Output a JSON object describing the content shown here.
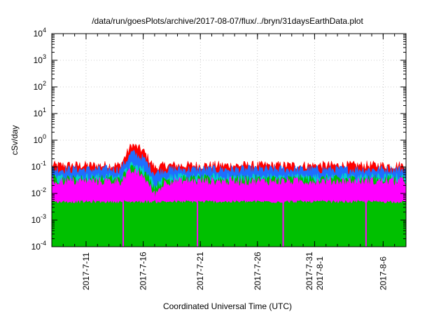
{
  "chart_data": {
    "type": "area",
    "title": "/data/run/goesPlots/archive/2017-08-07/flux/../bryn/31daysEarthData.plot",
    "xlabel": "Coordinated Universal Time (UTC)",
    "ylabel": "cSv/day",
    "yscale": "log",
    "ylim": [
      0.0001,
      10000
    ],
    "xlim": [
      "2017-07-08",
      "2017-08-08"
    ],
    "grid": true,
    "x_ticks": [
      {
        "date": "2017-07-11",
        "lines": [
          "2017-7-11"
        ]
      },
      {
        "date": "2017-07-16",
        "lines": [
          "2017-7-16"
        ]
      },
      {
        "date": "2017-07-21",
        "lines": [
          "2017-7-21"
        ]
      },
      {
        "date": "2017-07-26",
        "lines": [
          "2017-7-26"
        ]
      },
      {
        "date": "2017-07-31",
        "lines": [
          "2017-7-31",
          "2017-8-1"
        ]
      },
      {
        "date": "2017-08-06",
        "lines": [
          "2017-8-6"
        ]
      }
    ],
    "y_ticks": [
      {
        "value": 0.0001,
        "base": "10",
        "exp": "-4"
      },
      {
        "value": 0.001,
        "base": "10",
        "exp": "-3"
      },
      {
        "value": 0.01,
        "base": "10",
        "exp": "-2"
      },
      {
        "value": 0.1,
        "base": "10",
        "exp": "-1"
      },
      {
        "value": 1,
        "base": "10",
        "exp": "0"
      },
      {
        "value": 10,
        "base": "10",
        "exp": "1"
      },
      {
        "value": 100,
        "base": "10",
        "exp": "2"
      },
      {
        "value": 1000,
        "base": "10",
        "exp": "3"
      },
      {
        "value": 10000,
        "base": "10",
        "exp": "4"
      }
    ],
    "series_colors": [
      "#ff0000",
      "#00c000",
      "#00d0d0",
      "#1e6fff",
      "#ff00ff"
    ],
    "series": [
      {
        "color": "#ff0000",
        "x": [
          "2017-07-08",
          "2017-07-14",
          "2017-07-15",
          "2017-07-16",
          "2017-07-17",
          "2017-07-18",
          "2017-07-23",
          "2017-07-28",
          "2017-08-02",
          "2017-08-08"
        ],
        "y": [
          0.1,
          0.1,
          0.6,
          0.35,
          0.08,
          0.1,
          0.1,
          0.1,
          0.1,
          0.1
        ]
      },
      {
        "color": "#1e6fff",
        "x": [
          "2017-07-08",
          "2017-07-14",
          "2017-07-15",
          "2017-07-16",
          "2017-07-17",
          "2017-07-18",
          "2017-07-23",
          "2017-07-28",
          "2017-08-02",
          "2017-08-08"
        ],
        "y": [
          0.07,
          0.07,
          0.3,
          0.18,
          0.05,
          0.07,
          0.07,
          0.07,
          0.07,
          0.07
        ]
      },
      {
        "color": "#00d0d0",
        "x": [
          "2017-07-08",
          "2017-07-14",
          "2017-07-15",
          "2017-07-16",
          "2017-07-17",
          "2017-07-18",
          "2017-07-23",
          "2017-07-28",
          "2017-08-02",
          "2017-08-08"
        ],
        "y": [
          0.035,
          0.035,
          0.1,
          0.07,
          0.02,
          0.035,
          0.035,
          0.035,
          0.035,
          0.035
        ]
      },
      {
        "color": "#00c000",
        "x": [
          "2017-07-08",
          "2017-07-14",
          "2017-07-15",
          "2017-07-16",
          "2017-07-17",
          "2017-07-18",
          "2017-07-23",
          "2017-07-28",
          "2017-08-02",
          "2017-08-08"
        ],
        "y": [
          0.03,
          0.03,
          0.08,
          0.06,
          0.015,
          0.03,
          0.03,
          0.03,
          0.03,
          0.03
        ]
      },
      {
        "color": "#ff00ff",
        "x": [
          "2017-07-08",
          "2017-07-14",
          "2017-07-15",
          "2017-07-16",
          "2017-07-17",
          "2017-07-18",
          "2017-07-23",
          "2017-07-28",
          "2017-08-02",
          "2017-08-08"
        ],
        "y": [
          0.025,
          0.025,
          0.06,
          0.04,
          0.008,
          0.025,
          0.025,
          0.025,
          0.025,
          0.025
        ],
        "y_low": 0.005
      },
      {
        "color": "#ff00ff",
        "type": "dropouts",
        "x": [
          "2017-07-14 06:00",
          "2017-07-20 18:00",
          "2017-07-28 06:00",
          "2017-08-04 12:00"
        ],
        "y": [
          0.0001,
          0.0001,
          0.0001,
          0.0001
        ]
      }
    ]
  }
}
